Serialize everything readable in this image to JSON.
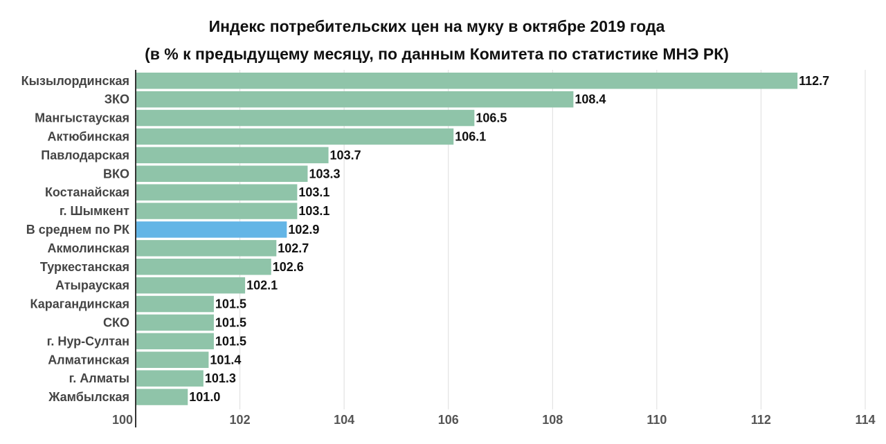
{
  "chart_data": {
    "type": "bar",
    "orientation": "horizontal",
    "title": "Индекс потребительских цен на муку в октябре 2019 года",
    "subtitle": "(в % к предыдущему месяцу, по данным Комитета по статистике МНЭ РК)",
    "xlim": [
      100,
      114
    ],
    "x_ticks": [
      100,
      102,
      104,
      106,
      108,
      110,
      112,
      114
    ],
    "grid": "vertical",
    "categories": [
      "Кызылординская",
      "ЗКО",
      "Мангыстауская",
      "Актюбинская",
      "Павлодарская",
      "ВКО",
      "Костанайская",
      "г. Шымкент",
      "В среднем по РК",
      "Акмолинская",
      "Туркестанская",
      "Атырауская",
      "Карагандинская",
      "СКО",
      "г. Нур-Султан",
      "Алматинская",
      "г. Алматы",
      "Жамбылская"
    ],
    "values": [
      112.7,
      108.4,
      106.5,
      106.1,
      103.7,
      103.3,
      103.1,
      103.1,
      102.9,
      102.7,
      102.6,
      102.1,
      101.5,
      101.5,
      101.5,
      101.4,
      101.3,
      101.0
    ],
    "value_labels": [
      "112.7",
      "108.4",
      "106.5",
      "106.1",
      "103.7",
      "103.3",
      "103.1",
      "103.1",
      "102.9",
      "102.7",
      "102.6",
      "102.1",
      "101.5",
      "101.5",
      "101.5",
      "101.4",
      "101.3",
      "101.0"
    ],
    "highlight_category": "В среднем по РК",
    "colors": {
      "bar": "#8fc4a9",
      "highlight": "#63b5e6",
      "grid": "#dddddd",
      "axis": "#333333"
    }
  }
}
